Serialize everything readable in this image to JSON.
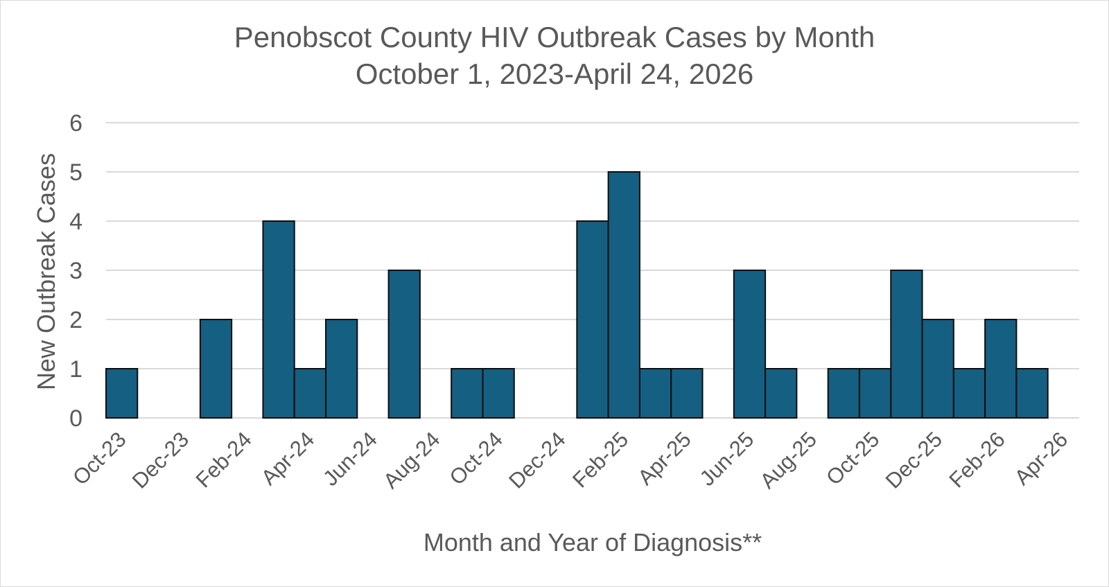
{
  "chart_data": {
    "type": "bar",
    "title": "Penobscot County HIV Outbreak Cases by Month",
    "subtitle": "October 1, 2023-April 24, 2026",
    "xlabel": "Month and Year of Diagnosis**",
    "ylabel": "New Outbreak Cases",
    "ylim": [
      0,
      6
    ],
    "yticks": [
      0,
      1,
      2,
      3,
      4,
      5,
      6
    ],
    "grid": true,
    "legend": "none",
    "bar_color": "#155f82",
    "categories": [
      "Oct-23",
      "Nov-23",
      "Dec-23",
      "Jan-24",
      "Feb-24",
      "Mar-24",
      "Apr-24",
      "May-24",
      "Jun-24",
      "Jul-24",
      "Aug-24",
      "Sep-24",
      "Oct-24",
      "Nov-24",
      "Dec-24",
      "Jan-25",
      "Feb-25",
      "Mar-25",
      "Apr-25",
      "May-25",
      "Jun-25",
      "Jul-25",
      "Aug-25",
      "Sep-25",
      "Oct-25",
      "Nov-25",
      "Dec-25",
      "Jan-26",
      "Feb-26",
      "Mar-26",
      "Apr-26"
    ],
    "values": [
      1,
      0,
      0,
      2,
      0,
      4,
      1,
      2,
      0,
      3,
      0,
      1,
      1,
      0,
      0,
      4,
      5,
      1,
      1,
      0,
      3,
      1,
      0,
      1,
      1,
      3,
      2,
      1,
      2,
      1,
      0
    ],
    "tick_labels": [
      "Oct-23",
      "Dec-23",
      "Feb-24",
      "Apr-24",
      "Jun-24",
      "Aug-24",
      "Oct-24",
      "Dec-24",
      "Feb-25",
      "Apr-25",
      "Jun-25",
      "Aug-25",
      "Oct-25",
      "Dec-25",
      "Feb-26",
      "Apr-26"
    ]
  }
}
